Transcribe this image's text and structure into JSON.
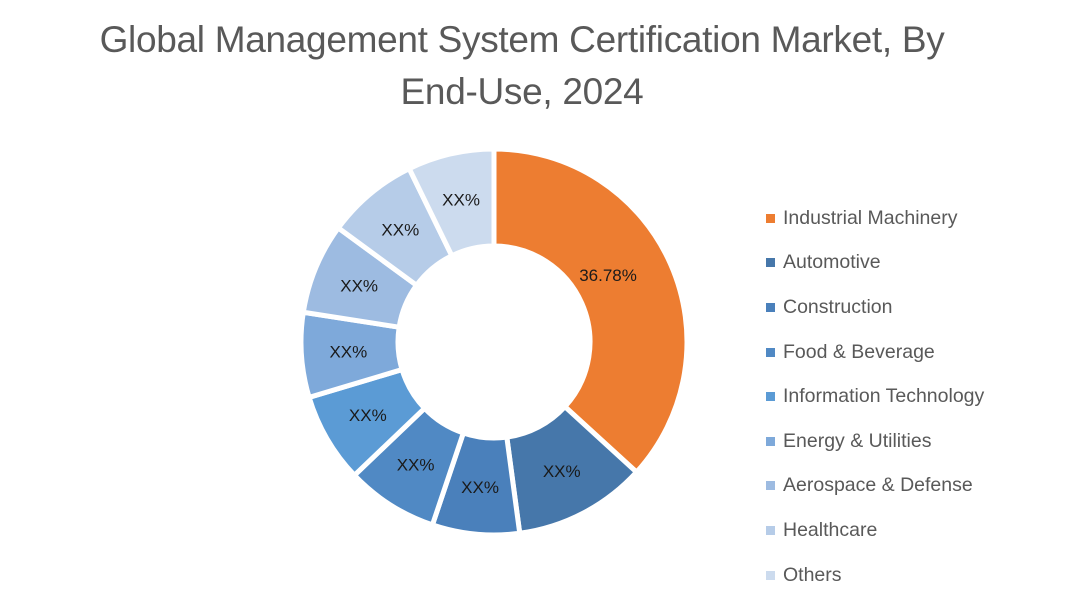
{
  "title": {
    "line1": "Global Management System Certification Market, By",
    "line2": "End-Use, 2024"
  },
  "chart_data": {
    "type": "pie",
    "variant": "donut",
    "title": "Global Management System Certification Market, By End-Use, 2024",
    "categories": [
      "Industrial Machinery",
      "Automotive",
      "Construction",
      "Food & Beverage",
      "Information Technology",
      "Energy & Utilities",
      "Aerospace & Defense",
      "Healthcare",
      "Others"
    ],
    "values": [
      36.78,
      11.1,
      7.3,
      7.7,
      7.5,
      7.1,
      7.6,
      7.7,
      7.24
    ],
    "data_labels": [
      "36.78%",
      "XX%",
      "XX%",
      "XX%",
      "XX%",
      "XX%",
      "XX%",
      "XX%",
      "XX%"
    ],
    "colors": [
      "#ED7D31",
      "#4677AA",
      "#4A80BB",
      "#5089C4",
      "#5B9BD5",
      "#7EA9DA",
      "#9DBBE1",
      "#B6CCE8",
      "#CCDBEE"
    ],
    "start_angle_deg": 0,
    "direction": "clockwise",
    "legend_position": "right",
    "note": "Only Industrial Machinery value (36.78%) is labeled; other slice values estimated from arc geometry, labels shown as XX%"
  },
  "legend": {
    "items": [
      {
        "label": "Industrial Machinery",
        "color": "#ED7D31"
      },
      {
        "label": "Automotive",
        "color": "#4677AA"
      },
      {
        "label": "Construction",
        "color": "#4A80BB"
      },
      {
        "label": "Food & Beverage",
        "color": "#5089C4"
      },
      {
        "label": "Information Technology",
        "color": "#5B9BD5"
      },
      {
        "label": "Energy & Utilities",
        "color": "#7EA9DA"
      },
      {
        "label": "Aerospace & Defense",
        "color": "#9DBBE1"
      },
      {
        "label": "Healthcare",
        "color": "#B6CCE8"
      },
      {
        "label": "Others",
        "color": "#CCDBEE"
      }
    ]
  }
}
